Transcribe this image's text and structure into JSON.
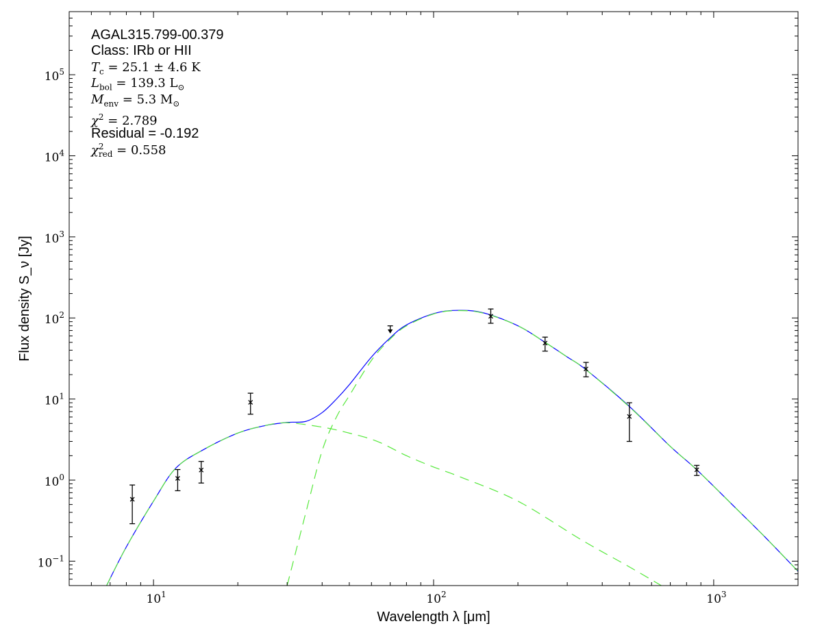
{
  "chart_data": {
    "type": "scatter",
    "xlabel": "Wavelength λ [μm]",
    "ylabel": "Flux density S_ν [Jy]",
    "xscale": "log",
    "yscale": "log",
    "xlim": [
      5,
      2000
    ],
    "ylim": [
      0.05,
      600000
    ],
    "xticks": [
      {
        "value": 10,
        "base": "10",
        "exp": "1"
      },
      {
        "value": 100,
        "base": "10",
        "exp": "2"
      },
      {
        "value": 1000,
        "base": "10",
        "exp": "3"
      }
    ],
    "yticks": [
      {
        "value": 0.1,
        "base": "10",
        "exp": "−1"
      },
      {
        "value": 1,
        "base": "10",
        "exp": "0"
      },
      {
        "value": 10,
        "base": "10",
        "exp": "1"
      },
      {
        "value": 100,
        "base": "10",
        "exp": "2"
      },
      {
        "value": 1000,
        "base": "10",
        "exp": "3"
      },
      {
        "value": 10000,
        "base": "10",
        "exp": "4"
      },
      {
        "value": 100000,
        "base": "10",
        "exp": "5"
      }
    ],
    "grid": false,
    "points": [
      {
        "x": 8.4,
        "y": 0.58,
        "ylo": 0.29,
        "yhi": 0.87
      },
      {
        "x": 12.2,
        "y": 1.05,
        "ylo": 0.74,
        "yhi": 1.35
      },
      {
        "x": 14.8,
        "y": 1.33,
        "ylo": 0.92,
        "yhi": 1.7
      },
      {
        "x": 22.2,
        "y": 9.1,
        "ylo": 6.5,
        "yhi": 11.8
      },
      {
        "x": 160,
        "y": 105,
        "ylo": 86,
        "yhi": 129
      },
      {
        "x": 250,
        "y": 49,
        "ylo": 39,
        "yhi": 58
      },
      {
        "x": 350,
        "y": 23.5,
        "ylo": 18.8,
        "yhi": 28.3
      },
      {
        "x": 500,
        "y": 6.1,
        "ylo": 3.0,
        "yhi": 9.0
      },
      {
        "x": 870,
        "y": 1.34,
        "ylo": 1.14,
        "yhi": 1.52
      }
    ],
    "upper_limits": [
      {
        "x": 70,
        "y": 80
      }
    ],
    "series": [
      {
        "style": "solid",
        "color": "#0000ff",
        "x": [
          6.8,
          8,
          10,
          12,
          15,
          20,
          25,
          30,
          35,
          40,
          45,
          50,
          60,
          70,
          80,
          100,
          120,
          150,
          200,
          250,
          300,
          350,
          500,
          700,
          870,
          1200,
          1500,
          2000
        ],
        "y": [
          0.05,
          0.15,
          0.55,
          1.4,
          2.35,
          3.8,
          4.7,
          5.15,
          5.3,
          6.8,
          10,
          15,
          33,
          57,
          82,
          113,
          124,
          116,
          80,
          50,
          33,
          23,
          8.1,
          2.6,
          1.34,
          0.45,
          0.21,
          0.075
        ]
      },
      {
        "style": "dashed",
        "color": "#55e83a",
        "x": [
          30,
          35,
          40,
          45,
          50,
          60,
          70,
          80,
          100,
          120,
          150,
          200,
          250,
          300,
          350,
          500,
          700,
          870,
          1200,
          1500,
          2000
        ],
        "y": [
          0.05,
          0.4,
          2.3,
          6,
          11,
          30,
          55,
          80,
          112,
          123,
          115,
          80,
          50,
          33,
          23,
          8,
          2.6,
          1.34,
          0.45,
          0.21,
          0.075
        ]
      },
      {
        "style": "dashed",
        "color": "#55e83a",
        "x": [
          6.8,
          8,
          10,
          12,
          15,
          20,
          25,
          30,
          40,
          50,
          63,
          80,
          100,
          124,
          200,
          340,
          500,
          650
        ],
        "y": [
          0.05,
          0.15,
          0.55,
          1.4,
          2.35,
          3.8,
          4.7,
          5.1,
          4.5,
          3.8,
          3.0,
          2.0,
          1.45,
          1.1,
          0.55,
          0.18,
          0.085,
          0.05
        ]
      }
    ],
    "annotations": {
      "source": "AGAL315.799-00.379",
      "class": "Class: IRb or HII",
      "tc": {
        "sym": "T",
        "sub": "c",
        "val": " = 25.1 ± 4.6 K"
      },
      "lbol": {
        "sym": "L",
        "sub": "bol",
        "val": " = 139.3 L",
        "sub2": "⊙"
      },
      "menv": {
        "sym": "M",
        "sub": "env",
        "val": " = 5.3 M",
        "sub2": "⊙"
      },
      "chi2": {
        "sym": "χ",
        "sup": "2",
        "val": " = 2.789"
      },
      "residual": "Residual = -0.192",
      "chi2red": {
        "sym": "χ",
        "sup": "2",
        "sub": "red",
        "val": " = 0.558"
      }
    }
  }
}
